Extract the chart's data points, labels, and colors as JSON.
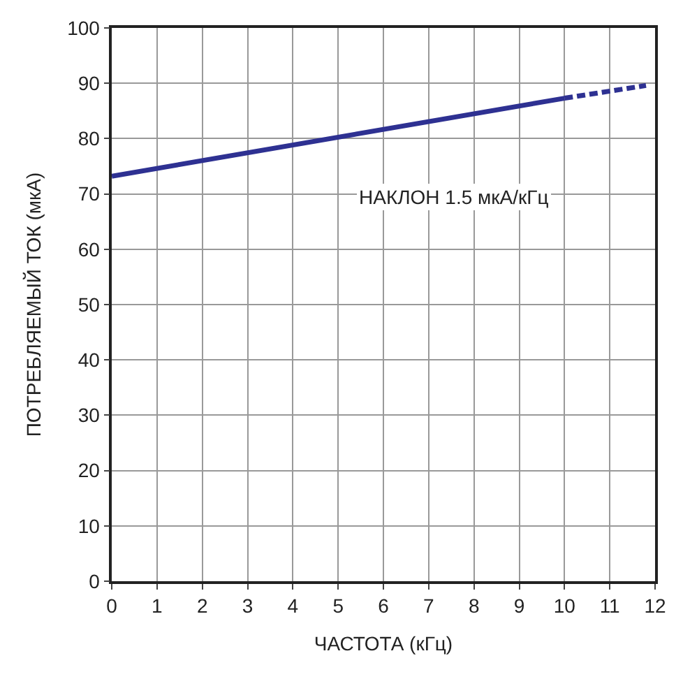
{
  "chart_data": {
    "type": "line",
    "xlabel": "ЧАСТОТА (кГц)",
    "ylabel": "ПОТРЕБЛЯЕМЫЙ ТОК (мкА)",
    "series": [
      {
        "color": "#2e3192",
        "x": [
          0,
          10
        ],
        "values": [
          73.2,
          87.3
        ],
        "line_style": "solid"
      },
      {
        "color": "#2e3192",
        "x": [
          10,
          11.8
        ],
        "values": [
          87.3,
          89.6
        ],
        "line_style": "dashed"
      }
    ],
    "annotations": [
      "НАКЛОН 1.5 мкА/кГц"
    ],
    "xlim": [
      0,
      12
    ],
    "xticks": [
      0,
      1,
      2,
      3,
      4,
      5,
      6,
      7,
      8,
      9,
      10,
      11,
      12
    ],
    "ylim": [
      0,
      100
    ],
    "yticks": [
      0,
      10,
      20,
      30,
      40,
      50,
      60,
      70,
      80,
      90,
      100
    ],
    "grid": true,
    "marker": "none"
  }
}
